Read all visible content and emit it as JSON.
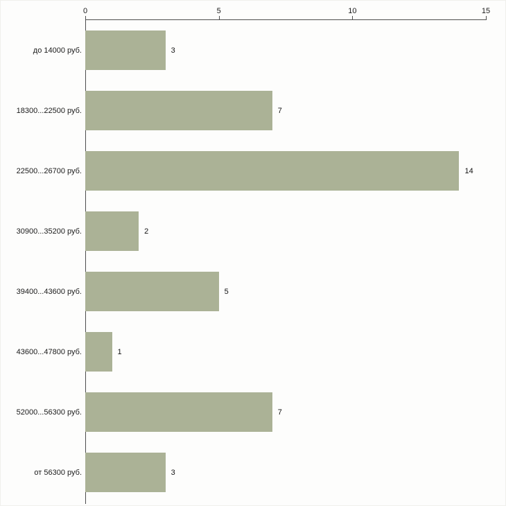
{
  "chart_data": {
    "type": "bar",
    "orientation": "horizontal",
    "title": "",
    "xlabel": "",
    "ylabel": "",
    "categories": [
      "до 14000 руб.",
      "18300...22500 руб.",
      "22500...26700 руб.",
      "30900...35200 руб.",
      "39400...43600 руб.",
      "43600...47800 руб.",
      "52000...56300 руб.",
      "от 56300 руб."
    ],
    "values": [
      3,
      7,
      14,
      2,
      5,
      1,
      7,
      3
    ],
    "value_labels": [
      "3",
      "7",
      "14",
      "2",
      "5",
      "1",
      "7",
      "3"
    ],
    "xlim": [
      0,
      15
    ],
    "x_ticks": [
      0,
      5,
      10,
      15
    ],
    "grid": false,
    "legend": false,
    "bar_color": "#abb296",
    "axis_color": "#4c4c4c",
    "background_color": "#fdfdfc"
  }
}
